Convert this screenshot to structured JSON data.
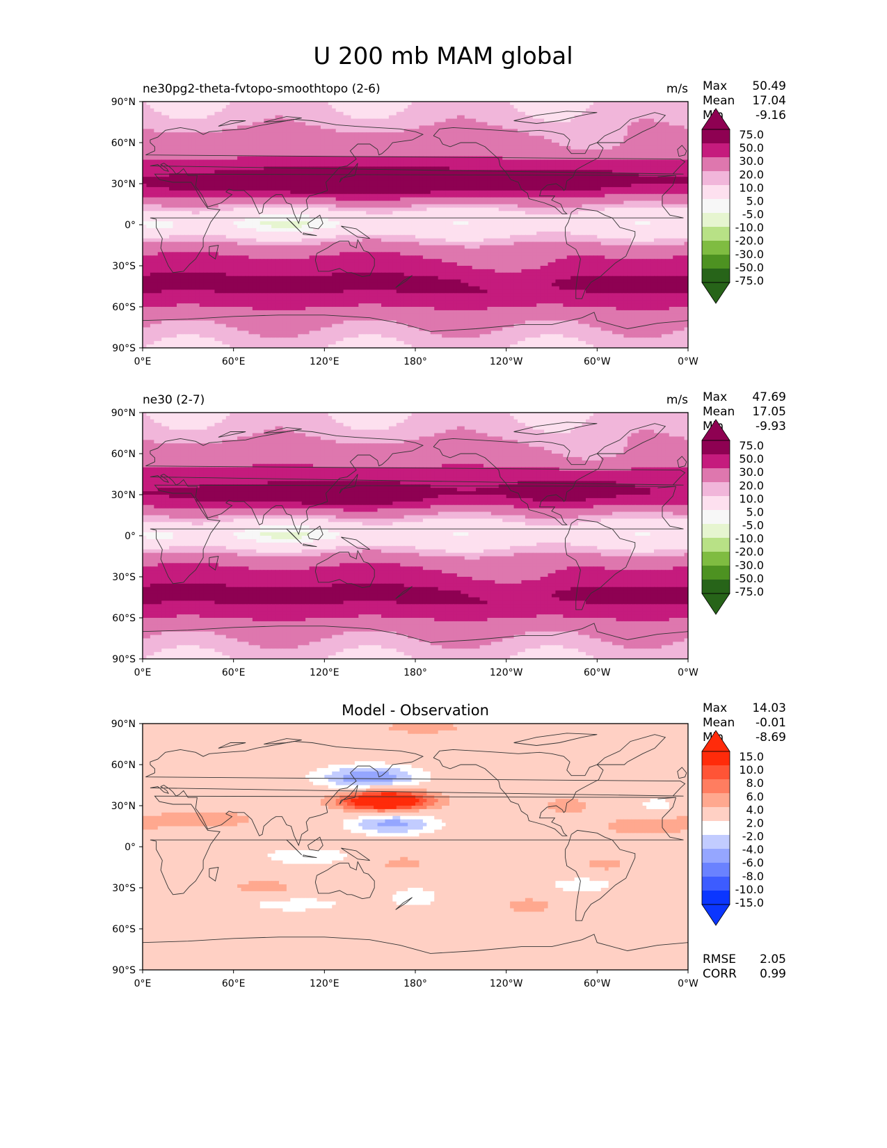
{
  "title": "U 200 mb MAM global",
  "lat_ticks": [
    "90°N",
    "60°N",
    "30°N",
    "0°",
    "30°S",
    "60°S",
    "90°S"
  ],
  "lon_ticks": [
    "0°E",
    "60°E",
    "120°E",
    "180°",
    "120°W",
    "60°W",
    "0°W"
  ],
  "colors": {
    "test_levels": [
      "#276419",
      "#4d9221",
      "#7fbc41",
      "#b8e186",
      "#e6f5d0",
      "#f7f7f7",
      "#fde0ef",
      "#f1b6da",
      "#de77ae",
      "#c51b7d",
      "#8e0152"
    ],
    "diff_levels": [
      "#0b36ff",
      "#3d5cff",
      "#6a82ff",
      "#95a6ff",
      "#c2ccff",
      "#ffffff",
      "#ffd0c4",
      "#ffa88f",
      "#ff7d60",
      "#ff5436",
      "#ff2b0a"
    ],
    "coast": "#333333"
  },
  "chart_data": [
    {
      "type": "heatmap",
      "name": "test",
      "title_left": "ne30pg2-theta-fvtopo-smoothtopo (2-6)",
      "title_center": "",
      "units": "m/s",
      "stats": [
        {
          "label": "Max",
          "value": "50.49"
        },
        {
          "label": "Mean",
          "value": "17.04"
        },
        {
          "label": "Min",
          "value": "-9.16"
        }
      ],
      "colorbar_levels": [
        "75.0",
        "50.0",
        "30.0",
        "20.0",
        "10.0",
        "5.0",
        "-5.0",
        "-10.0",
        "-20.0",
        "-30.0",
        "-50.0",
        "-75.0"
      ],
      "xrange": [
        0,
        360
      ],
      "yrange": [
        -90,
        90
      ],
      "zonal_profile": [
        {
          "lat": 90,
          "u": 5
        },
        {
          "lat": 75,
          "u": 8
        },
        {
          "lat": 62,
          "u": 14
        },
        {
          "lat": 50,
          "u": 18
        },
        {
          "lat": 40,
          "u": 24
        },
        {
          "lat": 32,
          "u": 30
        },
        {
          "lat": 25,
          "u": 26
        },
        {
          "lat": 18,
          "u": 14
        },
        {
          "lat": 10,
          "u": 4
        },
        {
          "lat": 0,
          "u": -3
        },
        {
          "lat": -10,
          "u": 6
        },
        {
          "lat": -20,
          "u": 18
        },
        {
          "lat": -30,
          "u": 26
        },
        {
          "lat": -40,
          "u": 32
        },
        {
          "lat": -50,
          "u": 30
        },
        {
          "lat": -60,
          "u": 20
        },
        {
          "lat": -70,
          "u": 12
        },
        {
          "lat": -80,
          "u": 8
        },
        {
          "lat": -90,
          "u": 5
        }
      ],
      "features": [
        {
          "lon": 140,
          "lat": 33,
          "dlon": 60,
          "dlat": 8,
          "u": 20
        },
        {
          "lon": 285,
          "lat": 35,
          "dlon": 35,
          "dlat": 7,
          "u": 8
        },
        {
          "lon": 100,
          "lat": 2,
          "dlon": 30,
          "dlat": 6,
          "u": -7
        },
        {
          "lon": 15,
          "lat": 0,
          "dlon": 12,
          "dlat": 6,
          "u": -6
        },
        {
          "lon": 245,
          "lat": -30,
          "dlon": 25,
          "dlat": 8,
          "u": -10
        },
        {
          "lon": 300,
          "lat": 60,
          "dlon": 20,
          "dlat": 8,
          "u": -8
        }
      ]
    },
    {
      "type": "heatmap",
      "name": "reference",
      "title_left": "ne30 (2-7)",
      "title_center": "",
      "units": "m/s",
      "stats": [
        {
          "label": "Max",
          "value": "47.69"
        },
        {
          "label": "Mean",
          "value": "17.05"
        },
        {
          "label": "Min",
          "value": "-9.93"
        }
      ],
      "colorbar_levels": [
        "75.0",
        "50.0",
        "30.0",
        "20.0",
        "10.0",
        "5.0",
        "-5.0",
        "-10.0",
        "-20.0",
        "-30.0",
        "-50.0",
        "-75.0"
      ],
      "xrange": [
        0,
        360
      ],
      "yrange": [
        -90,
        90
      ],
      "zonal_profile": [
        {
          "lat": 90,
          "u": 5
        },
        {
          "lat": 75,
          "u": 8
        },
        {
          "lat": 62,
          "u": 14
        },
        {
          "lat": 50,
          "u": 20
        },
        {
          "lat": 40,
          "u": 25
        },
        {
          "lat": 32,
          "u": 29
        },
        {
          "lat": 25,
          "u": 25
        },
        {
          "lat": 18,
          "u": 13
        },
        {
          "lat": 10,
          "u": 4
        },
        {
          "lat": 0,
          "u": -3
        },
        {
          "lat": -10,
          "u": 6
        },
        {
          "lat": -20,
          "u": 18
        },
        {
          "lat": -30,
          "u": 26
        },
        {
          "lat": -40,
          "u": 32
        },
        {
          "lat": -50,
          "u": 30
        },
        {
          "lat": -60,
          "u": 20
        },
        {
          "lat": -70,
          "u": 12
        },
        {
          "lat": -80,
          "u": 8
        },
        {
          "lat": -90,
          "u": 5
        }
      ],
      "features": [
        {
          "lon": 120,
          "lat": 30,
          "dlon": 50,
          "dlat": 8,
          "u": 12
        },
        {
          "lon": 285,
          "lat": 35,
          "dlon": 35,
          "dlat": 7,
          "u": 8
        },
        {
          "lon": 100,
          "lat": 2,
          "dlon": 30,
          "dlat": 6,
          "u": -7
        },
        {
          "lon": 15,
          "lat": 0,
          "dlon": 12,
          "dlat": 6,
          "u": -6
        },
        {
          "lon": 245,
          "lat": -30,
          "dlon": 25,
          "dlat": 8,
          "u": -10
        },
        {
          "lon": 300,
          "lat": 60,
          "dlon": 20,
          "dlat": 8,
          "u": -8
        }
      ]
    },
    {
      "type": "heatmap",
      "name": "difference",
      "title_left": "",
      "title_center": "Model - Observation",
      "units": "",
      "stats": [
        {
          "label": "Max",
          "value": "14.03"
        },
        {
          "label": "Mean",
          "value": "-0.01"
        },
        {
          "label": "Min",
          "value": "-8.69"
        }
      ],
      "colorbar_levels": [
        "15.0",
        "10.0",
        "8.0",
        "6.0",
        "4.0",
        "2.0",
        "-2.0",
        "-4.0",
        "-6.0",
        "-8.0",
        "-10.0",
        "-15.0"
      ],
      "metrics": [
        {
          "label": "RMSE",
          "value": "2.05"
        },
        {
          "label": "CORR",
          "value": "0.99"
        }
      ],
      "xrange": [
        0,
        360
      ],
      "yrange": [
        -90,
        90
      ],
      "features": [
        {
          "lon": 160,
          "lat": 34,
          "dlon": 22,
          "dlat": 6,
          "u": 14
        },
        {
          "lon": 150,
          "lat": 50,
          "dlon": 25,
          "dlat": 7,
          "u": -8
        },
        {
          "lon": 165,
          "lat": 17,
          "dlon": 22,
          "dlat": 6,
          "u": -7
        },
        {
          "lon": 40,
          "lat": 20,
          "dlon": 35,
          "dlat": 6,
          "u": 3
        },
        {
          "lon": 330,
          "lat": 15,
          "dlon": 25,
          "dlat": 6,
          "u": 3
        },
        {
          "lon": 280,
          "lat": 30,
          "dlon": 15,
          "dlat": 5,
          "u": 3
        },
        {
          "lon": 185,
          "lat": 87,
          "dlon": 25,
          "dlat": 4,
          "u": 3
        },
        {
          "lon": 110,
          "lat": -7,
          "dlon": 30,
          "dlat": 6,
          "u": -3
        },
        {
          "lon": 100,
          "lat": -42,
          "dlon": 30,
          "dlat": 5,
          "u": -3
        },
        {
          "lon": 80,
          "lat": -30,
          "dlon": 20,
          "dlat": 5,
          "u": 3
        },
        {
          "lon": 180,
          "lat": -37,
          "dlon": 15,
          "dlat": 7,
          "u": -3
        },
        {
          "lon": 170,
          "lat": -12,
          "dlon": 15,
          "dlat": 5,
          "u": 3
        },
        {
          "lon": 290,
          "lat": -28,
          "dlon": 20,
          "dlat": 5,
          "u": -3
        },
        {
          "lon": 255,
          "lat": -43,
          "dlon": 15,
          "dlat": 5,
          "u": 3
        },
        {
          "lon": 305,
          "lat": -13,
          "dlon": 12,
          "dlat": 4,
          "u": 3
        },
        {
          "lon": 340,
          "lat": 30,
          "dlon": 12,
          "dlat": 5,
          "u": -3
        }
      ]
    }
  ]
}
